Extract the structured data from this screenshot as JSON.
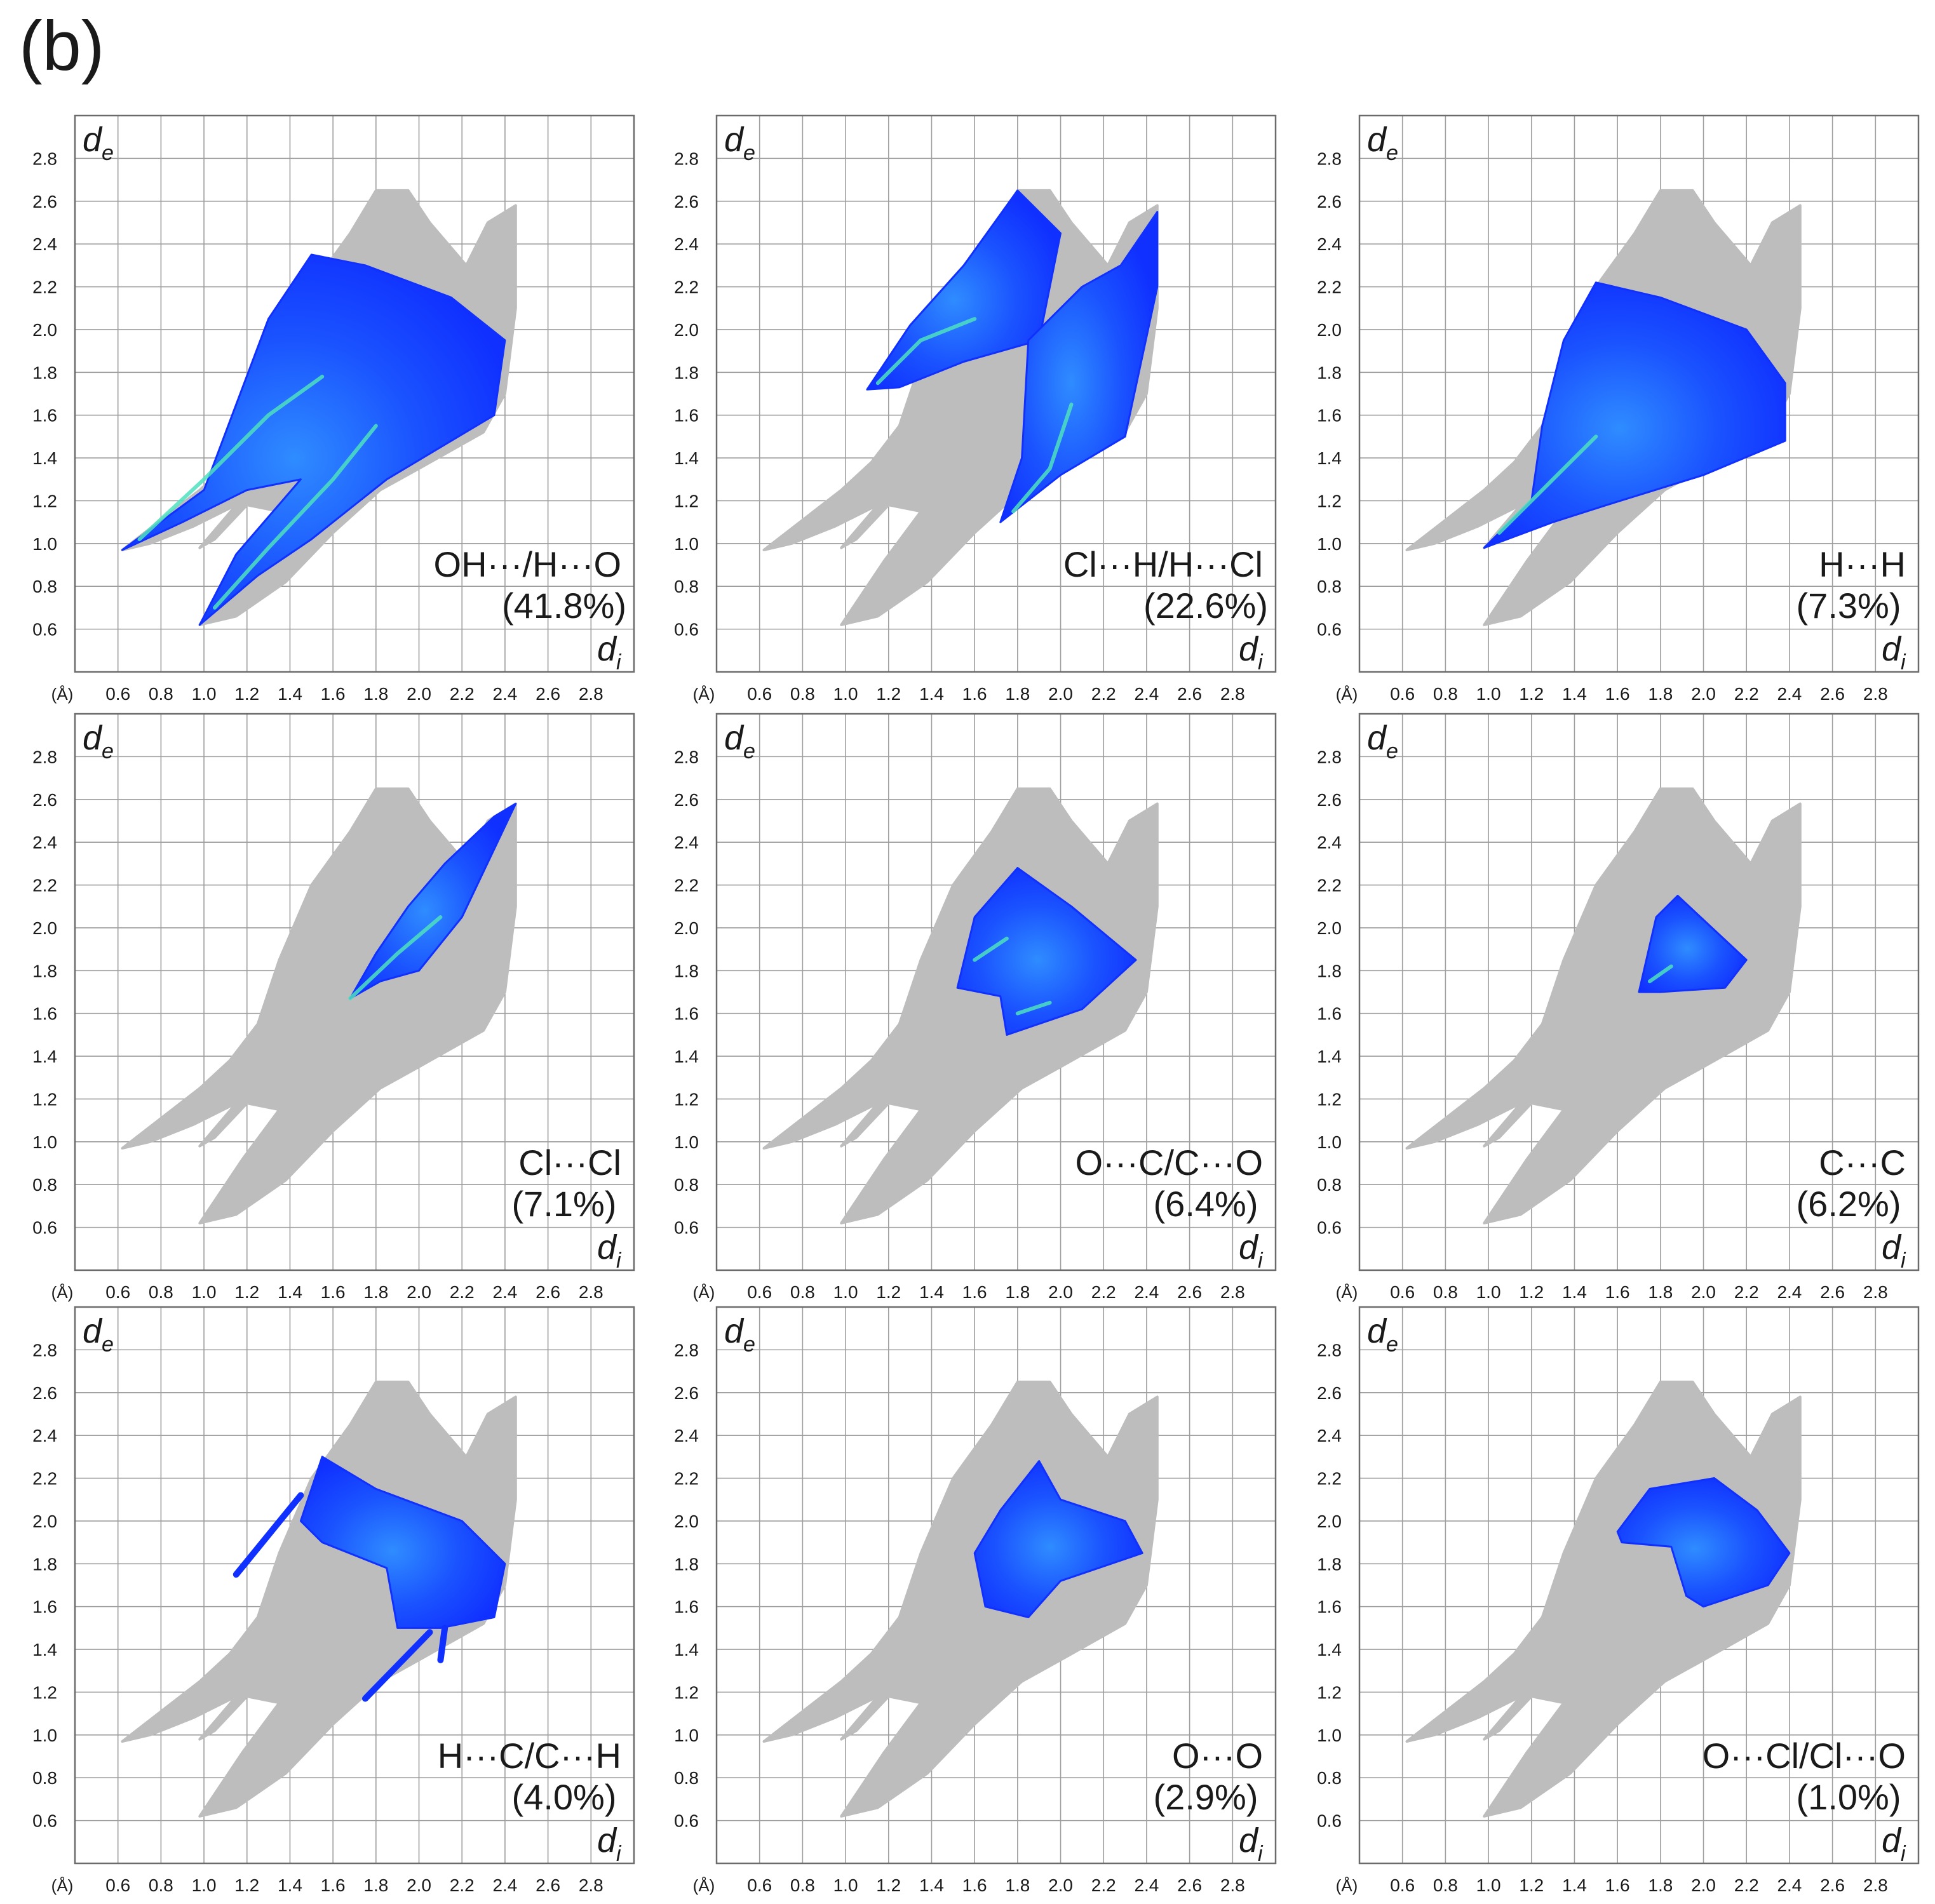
{
  "figure_label": "(b)",
  "colors": {
    "background_points": "#bdbdbd",
    "grid": "#9e9e9e",
    "frame": "#6b6b6b",
    "low_density": "#1030ff",
    "mid_density": "#2f8cff",
    "high_density": "#4de0c0",
    "peak_density": "#9cff40"
  },
  "axis_common": {
    "unit_label": "(Å)",
    "x_name": "d",
    "x_subscript": "i",
    "y_name": "d",
    "y_subscript": "e",
    "range": [
      0.4,
      3.0
    ],
    "ticks": [
      "0.6",
      "0.8",
      "1.0",
      "1.2",
      "1.4",
      "1.6",
      "1.8",
      "2.0",
      "2.2",
      "2.4",
      "2.6",
      "2.8"
    ]
  },
  "chart_data": [
    {
      "type": "scatter",
      "title": "OH···/H···O",
      "percent": "(41.8%)",
      "xlabel": "di",
      "ylabel": "de",
      "xlim": [
        0.4,
        3.0
      ],
      "ylim": [
        0.4,
        3.0
      ],
      "highlight_region": [
        [
          0.62,
          0.97
        ],
        [
          1.0,
          1.25
        ],
        [
          1.15,
          1.65
        ],
        [
          1.3,
          2.05
        ],
        [
          1.5,
          2.35
        ],
        [
          1.75,
          2.3
        ],
        [
          2.15,
          2.15
        ],
        [
          2.4,
          1.95
        ],
        [
          2.35,
          1.6
        ],
        [
          2.1,
          1.45
        ],
        [
          1.85,
          1.3
        ],
        [
          1.5,
          1.02
        ],
        [
          1.25,
          0.85
        ],
        [
          0.98,
          0.62
        ],
        [
          1.15,
          0.95
        ],
        [
          1.45,
          1.3
        ],
        [
          1.2,
          1.25
        ],
        [
          0.9,
          1.1
        ]
      ],
      "density_ridges": [
        [
          [
            0.7,
            1.02
          ],
          [
            1.0,
            1.3
          ],
          [
            1.3,
            1.6
          ],
          [
            1.55,
            1.78
          ]
        ],
        [
          [
            1.05,
            0.7
          ],
          [
            1.3,
            0.98
          ],
          [
            1.6,
            1.3
          ],
          [
            1.8,
            1.55
          ]
        ]
      ]
    },
    {
      "type": "scatter",
      "title": "Cl···H/H···Cl",
      "percent": "(22.6%)",
      "xlabel": "di",
      "ylabel": "de",
      "xlim": [
        0.4,
        3.0
      ],
      "ylim": [
        0.4,
        3.0
      ],
      "highlight_region": [
        [
          1.1,
          1.72
        ],
        [
          1.3,
          2.02
        ],
        [
          1.55,
          2.3
        ],
        [
          1.8,
          2.65
        ],
        [
          2.0,
          2.45
        ],
        [
          1.9,
          1.95
        ],
        [
          1.55,
          1.85
        ],
        [
          1.25,
          1.73
        ]
      ],
      "highlight_region_2": [
        [
          1.72,
          1.1
        ],
        [
          2.0,
          1.32
        ],
        [
          2.3,
          1.5
        ],
        [
          2.45,
          2.2
        ],
        [
          2.45,
          2.55
        ],
        [
          2.28,
          2.3
        ],
        [
          2.1,
          2.2
        ],
        [
          1.85,
          1.95
        ],
        [
          1.82,
          1.4
        ]
      ],
      "density_ridges": [
        [
          [
            1.15,
            1.75
          ],
          [
            1.35,
            1.95
          ],
          [
            1.6,
            2.05
          ]
        ],
        [
          [
            1.78,
            1.15
          ],
          [
            1.95,
            1.35
          ],
          [
            2.05,
            1.65
          ]
        ]
      ]
    },
    {
      "type": "scatter",
      "title": "H···H",
      "percent": "(7.3%)",
      "xlabel": "di",
      "ylabel": "de",
      "xlim": [
        0.4,
        3.0
      ],
      "ylim": [
        0.4,
        3.0
      ],
      "highlight_region": [
        [
          0.98,
          0.98
        ],
        [
          1.2,
          1.2
        ],
        [
          1.25,
          1.55
        ],
        [
          1.35,
          1.95
        ],
        [
          1.5,
          2.22
        ],
        [
          1.8,
          2.15
        ],
        [
          2.2,
          2.0
        ],
        [
          2.38,
          1.75
        ],
        [
          2.38,
          1.48
        ],
        [
          2.0,
          1.32
        ],
        [
          1.55,
          1.18
        ],
        [
          1.3,
          1.1
        ]
      ],
      "density_ridges": [
        [
          [
            1.05,
            1.05
          ],
          [
            1.3,
            1.3
          ],
          [
            1.5,
            1.5
          ]
        ]
      ]
    },
    {
      "type": "scatter",
      "title": "Cl···Cl",
      "percent": "(7.1%)",
      "xlabel": "di",
      "ylabel": "de",
      "xlim": [
        0.4,
        3.0
      ],
      "ylim": [
        0.4,
        3.0
      ],
      "highlight_region": [
        [
          1.68,
          1.67
        ],
        [
          1.82,
          1.75
        ],
        [
          2.0,
          1.8
        ],
        [
          2.2,
          2.05
        ],
        [
          2.45,
          2.58
        ],
        [
          2.35,
          2.52
        ],
        [
          2.12,
          2.3
        ],
        [
          1.95,
          2.1
        ],
        [
          1.8,
          1.88
        ]
      ],
      "density_ridges": [
        [
          [
            1.68,
            1.67
          ],
          [
            1.9,
            1.88
          ],
          [
            2.1,
            2.05
          ]
        ]
      ]
    },
    {
      "type": "scatter",
      "title": "O···C/C···O",
      "percent": "(6.4%)",
      "xlabel": "di",
      "ylabel": "de",
      "xlim": [
        0.4,
        3.0
      ],
      "ylim": [
        0.4,
        3.0
      ],
      "highlight_region": [
        [
          1.52,
          1.72
        ],
        [
          1.6,
          2.05
        ],
        [
          1.8,
          2.28
        ],
        [
          2.05,
          2.1
        ],
        [
          2.35,
          1.85
        ],
        [
          2.1,
          1.62
        ],
        [
          1.75,
          1.5
        ],
        [
          1.72,
          1.68
        ]
      ],
      "density_ridges": [
        [
          [
            1.6,
            1.85
          ],
          [
            1.75,
            1.95
          ]
        ],
        [
          [
            1.8,
            1.6
          ],
          [
            1.95,
            1.65
          ]
        ]
      ]
    },
    {
      "type": "scatter",
      "title": "C···C",
      "percent": "(6.2%)",
      "xlabel": "di",
      "ylabel": "de",
      "xlim": [
        0.4,
        3.0
      ],
      "ylim": [
        0.4,
        3.0
      ],
      "highlight_region": [
        [
          1.7,
          1.7
        ],
        [
          1.78,
          2.05
        ],
        [
          1.88,
          2.15
        ],
        [
          2.2,
          1.85
        ],
        [
          2.1,
          1.72
        ],
        [
          1.8,
          1.7
        ]
      ],
      "density_ridges": [
        [
          [
            1.75,
            1.75
          ],
          [
            1.85,
            1.82
          ]
        ]
      ]
    },
    {
      "type": "scatter",
      "title": "H···C/C···H",
      "percent": "(4.0%)",
      "xlabel": "di",
      "ylabel": "de",
      "xlim": [
        0.4,
        3.0
      ],
      "ylim": [
        0.4,
        3.0
      ],
      "highlight_region": [
        [
          1.45,
          2.0
        ],
        [
          1.55,
          2.3
        ],
        [
          1.8,
          2.15
        ],
        [
          2.2,
          2.0
        ],
        [
          2.4,
          1.8
        ],
        [
          2.35,
          1.55
        ],
        [
          2.1,
          1.5
        ],
        [
          1.9,
          1.5
        ],
        [
          1.85,
          1.78
        ],
        [
          1.55,
          1.9
        ]
      ],
      "highlight_lines": [
        [
          [
            1.15,
            1.75
          ],
          [
            1.45,
            2.12
          ]
        ],
        [
          [
            1.75,
            1.17
          ],
          [
            2.05,
            1.48
          ]
        ],
        [
          [
            2.1,
            1.35
          ],
          [
            2.12,
            1.5
          ]
        ]
      ],
      "density_ridges": []
    },
    {
      "type": "scatter",
      "title": "O···O",
      "percent": "(2.9%)",
      "xlabel": "di",
      "ylabel": "de",
      "xlim": [
        0.4,
        3.0
      ],
      "ylim": [
        0.4,
        3.0
      ],
      "highlight_region": [
        [
          1.6,
          1.85
        ],
        [
          1.72,
          2.05
        ],
        [
          1.9,
          2.28
        ],
        [
          2.0,
          2.1
        ],
        [
          2.3,
          2.0
        ],
        [
          2.38,
          1.85
        ],
        [
          2.0,
          1.72
        ],
        [
          1.85,
          1.55
        ],
        [
          1.65,
          1.6
        ]
      ],
      "density_ridges": []
    },
    {
      "type": "scatter",
      "title": "O···Cl/Cl···O",
      "percent": "(1.0%)",
      "xlabel": "di",
      "ylabel": "de",
      "xlim": [
        0.4,
        3.0
      ],
      "ylim": [
        0.4,
        3.0
      ],
      "highlight_region": [
        [
          1.6,
          1.95
        ],
        [
          1.75,
          2.15
        ],
        [
          2.05,
          2.2
        ],
        [
          2.25,
          2.05
        ],
        [
          2.4,
          1.85
        ],
        [
          2.3,
          1.7
        ],
        [
          2.0,
          1.6
        ],
        [
          1.92,
          1.65
        ],
        [
          1.85,
          1.88
        ],
        [
          1.62,
          1.9
        ]
      ],
      "density_ridges": []
    }
  ]
}
